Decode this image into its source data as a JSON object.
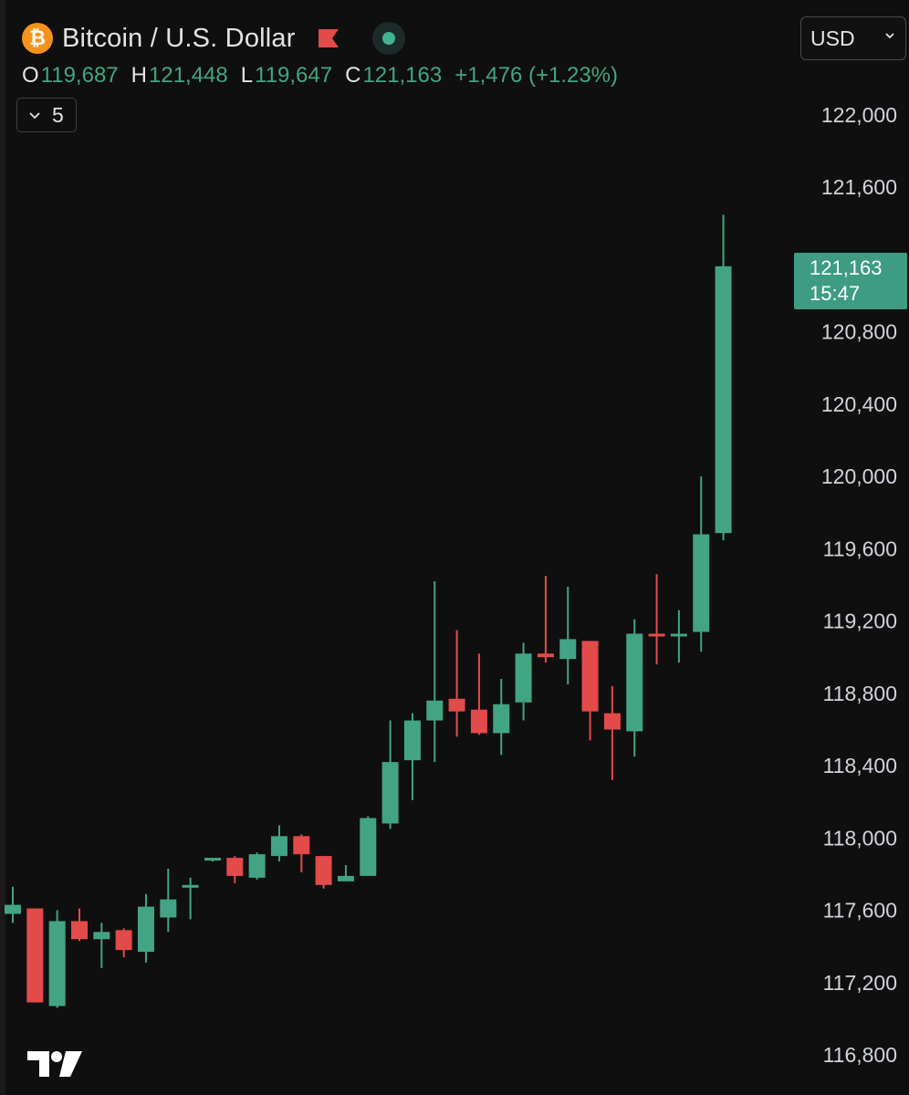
{
  "header": {
    "logo_symbol": "₿",
    "title": "Bitcoin / U.S. Dollar",
    "currency": "USD",
    "indicator_count": "5",
    "icons": [
      "bitcoin-logo-icon",
      "flag-icon",
      "market-open-dot-icon",
      "chevron-down-icon",
      "tradingview-logo-icon"
    ],
    "colors": {
      "up": "#42a485",
      "down": "#e34a4a",
      "background": "#0f0f0f",
      "logo": "#f7931a"
    }
  },
  "ohlc": {
    "o_label": "O",
    "o": "119,687",
    "h_label": "H",
    "h": "121,448",
    "l_label": "L",
    "l": "119,647",
    "c_label": "C",
    "c": "121,163",
    "change": "+1,476 (+1.23%)"
  },
  "last_price": {
    "value": "121,163",
    "countdown": "15:47"
  },
  "chart_data": {
    "type": "candlestick",
    "title": "Bitcoin / U.S. Dollar",
    "interval_minutes": 5,
    "ylim": [
      116800,
      122000
    ],
    "y_ticks": [
      122000,
      121600,
      120800,
      120400,
      120000,
      119600,
      119200,
      118800,
      118400,
      118000,
      117600,
      117200,
      116800
    ],
    "y_tick_labels": [
      "122,000",
      "121,600",
      "120,800",
      "120,400",
      "120,000",
      "119,600",
      "119,200",
      "118,800",
      "118,400",
      "118,000",
      "117,600",
      "117,200",
      "116,800"
    ],
    "candles": [
      {
        "o": 117580,
        "h": 117730,
        "l": 117530,
        "c": 117630
      },
      {
        "o": 117610,
        "h": 117610,
        "l": 117090,
        "c": 117090
      },
      {
        "o": 117070,
        "h": 117600,
        "l": 117060,
        "c": 117540
      },
      {
        "o": 117540,
        "h": 117610,
        "l": 117430,
        "c": 117440
      },
      {
        "o": 117440,
        "h": 117530,
        "l": 117280,
        "c": 117480
      },
      {
        "o": 117490,
        "h": 117500,
        "l": 117340,
        "c": 117380
      },
      {
        "o": 117370,
        "h": 117690,
        "l": 117310,
        "c": 117620
      },
      {
        "o": 117560,
        "h": 117830,
        "l": 117480,
        "c": 117660
      },
      {
        "o": 117740,
        "h": 117780,
        "l": 117550,
        "c": 117740
      },
      {
        "o": 117880,
        "h": 117890,
        "l": 117870,
        "c": 117890
      },
      {
        "o": 117890,
        "h": 117900,
        "l": 117750,
        "c": 117790
      },
      {
        "o": 117780,
        "h": 117920,
        "l": 117770,
        "c": 117910
      },
      {
        "o": 117900,
        "h": 118070,
        "l": 117870,
        "c": 118010
      },
      {
        "o": 118010,
        "h": 118020,
        "l": 117810,
        "c": 117910
      },
      {
        "o": 117900,
        "h": 117900,
        "l": 117720,
        "c": 117740
      },
      {
        "o": 117760,
        "h": 117850,
        "l": 117770,
        "c": 117790
      },
      {
        "o": 117790,
        "h": 118120,
        "l": 117790,
        "c": 118110
      },
      {
        "o": 118080,
        "h": 118650,
        "l": 118050,
        "c": 118420
      },
      {
        "o": 118430,
        "h": 118690,
        "l": 118210,
        "c": 118650
      },
      {
        "o": 118650,
        "h": 119420,
        "l": 118420,
        "c": 118760
      },
      {
        "o": 118770,
        "h": 119150,
        "l": 118560,
        "c": 118700
      },
      {
        "o": 118710,
        "h": 119020,
        "l": 118570,
        "c": 118580
      },
      {
        "o": 118580,
        "h": 118880,
        "l": 118460,
        "c": 118740
      },
      {
        "o": 118750,
        "h": 119080,
        "l": 118650,
        "c": 119020
      },
      {
        "o": 119020,
        "h": 119450,
        "l": 118970,
        "c": 119000
      },
      {
        "o": 118990,
        "h": 119390,
        "l": 118850,
        "c": 119100
      },
      {
        "o": 119090,
        "h": 119090,
        "l": 118540,
        "c": 118700
      },
      {
        "o": 118690,
        "h": 118840,
        "l": 118320,
        "c": 118600
      },
      {
        "o": 118590,
        "h": 119210,
        "l": 118450,
        "c": 119130
      },
      {
        "o": 119130,
        "h": 119460,
        "l": 118960,
        "c": 119120
      },
      {
        "o": 119120,
        "h": 119260,
        "l": 118970,
        "c": 119130
      },
      {
        "o": 119140,
        "h": 120000,
        "l": 119030,
        "c": 119680
      },
      {
        "o": 119687,
        "h": 121448,
        "l": 119647,
        "c": 121163
      }
    ]
  }
}
